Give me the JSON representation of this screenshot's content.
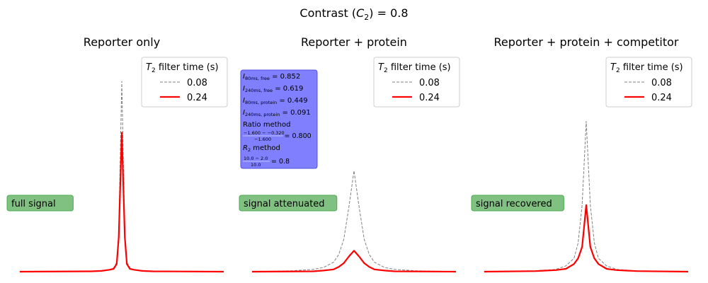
{
  "suptitle": {
    "prefix": "Contrast (",
    "symbol": "C",
    "sub": "2",
    "suffix": ") = 0.8"
  },
  "legend": {
    "title_symbol": "T",
    "title_sub": "2",
    "title_rest": " filter time (s)",
    "entries": [
      {
        "label": "0.08",
        "color": "#808080",
        "style": "dashed"
      },
      {
        "label": "0.24",
        "color": "#ff0000",
        "style": "solid"
      }
    ]
  },
  "colors": {
    "badge_fill": "#80c080",
    "badge_edge": "#4caf50",
    "info_fill": "#8080ff",
    "info_edge": "#4f4fe0"
  },
  "info_box": {
    "lines": [
      {
        "kind": "sym",
        "base": "I",
        "sub": "80ms, free",
        "value": " = 0.852"
      },
      {
        "kind": "sym",
        "base": "I",
        "sub": "240ms, free",
        "value": " = 0.619"
      },
      {
        "kind": "sym",
        "base": "I",
        "sub": "80ms, protein",
        "value": " = 0.449"
      },
      {
        "kind": "sym",
        "base": "I",
        "sub": "240ms, protein",
        "value": " = 0.091"
      },
      {
        "kind": "text",
        "text": "Ratio method"
      },
      {
        "kind": "frac",
        "num": "−1.600 − −0.320",
        "den": "−1.600",
        "value": " = 0.800"
      },
      {
        "kind": "sym",
        "base": "R",
        "sub": "2",
        "value": " method"
      },
      {
        "kind": "frac",
        "num": "10.0 − 2.0",
        "den": "10.0",
        "value": " = 0.8"
      }
    ]
  },
  "chart_data": [
    {
      "type": "line",
      "title": "Reporter only",
      "annotation": "full signal",
      "xlim": [
        -10,
        10
      ],
      "ylim": [
        0,
        1.0
      ],
      "series": [
        {
          "name": "0.08",
          "x": [
            -10,
            -3,
            -2,
            -1.2,
            -0.8,
            -0.5,
            -0.3,
            0,
            0.3,
            0.5,
            0.8,
            1.2,
            2,
            3,
            10
          ],
          "y": [
            0,
            0.002,
            0.004,
            0.01,
            0.02,
            0.05,
            0.2,
            1.0,
            0.2,
            0.05,
            0.02,
            0.01,
            0.004,
            0.002,
            0
          ]
        },
        {
          "name": "0.24",
          "x": [
            -10,
            -3,
            -2,
            -1.2,
            -0.8,
            -0.5,
            -0.3,
            0,
            0.3,
            0.5,
            0.8,
            1.2,
            2,
            3,
            10
          ],
          "y": [
            0,
            0.002,
            0.004,
            0.01,
            0.015,
            0.04,
            0.18,
            0.73,
            0.18,
            0.04,
            0.015,
            0.01,
            0.004,
            0.002,
            0
          ]
        }
      ]
    },
    {
      "type": "line",
      "title": "Reporter + protein",
      "annotation": "signal attenuated",
      "xlim": [
        -10,
        10
      ],
      "ylim": [
        0,
        1.0
      ],
      "series": [
        {
          "name": "0.08",
          "x": [
            -10,
            -6,
            -4,
            -3,
            -2,
            -1.5,
            -1,
            -0.5,
            0,
            0.5,
            1,
            1.5,
            2,
            3,
            4,
            6,
            10
          ],
          "y": [
            0,
            0.005,
            0.012,
            0.022,
            0.05,
            0.09,
            0.17,
            0.34,
            0.53,
            0.34,
            0.17,
            0.09,
            0.05,
            0.022,
            0.012,
            0.005,
            0
          ]
        },
        {
          "name": "0.24",
          "x": [
            -10,
            -4,
            -3,
            -2,
            -1.5,
            -1,
            -0.5,
            0,
            0.5,
            1,
            1.5,
            2,
            3,
            4,
            10
          ],
          "y": [
            0,
            0.002,
            0.006,
            0.012,
            0.025,
            0.045,
            0.08,
            0.11,
            0.08,
            0.045,
            0.025,
            0.012,
            0.006,
            0.002,
            0
          ]
        }
      ]
    },
    {
      "type": "line",
      "title": "Reporter + protein + competitor",
      "annotation": "signal recovered",
      "xlim": [
        -10,
        10
      ],
      "ylim": [
        0,
        1.0
      ],
      "series": [
        {
          "name": "0.08",
          "x": [
            -10,
            -5,
            -3,
            -2,
            -1.2,
            -0.8,
            -0.4,
            0,
            0.4,
            0.8,
            1.2,
            2,
            3,
            5,
            10
          ],
          "y": [
            0,
            0.005,
            0.012,
            0.03,
            0.07,
            0.15,
            0.35,
            0.79,
            0.35,
            0.15,
            0.07,
            0.03,
            0.012,
            0.005,
            0
          ]
        },
        {
          "name": "0.24",
          "x": [
            -10,
            -5,
            -3,
            -2,
            -1.2,
            -0.8,
            -0.4,
            0,
            0.4,
            0.8,
            1.2,
            2,
            3,
            5,
            10
          ],
          "y": [
            0,
            0.003,
            0.008,
            0.015,
            0.04,
            0.07,
            0.13,
            0.35,
            0.13,
            0.07,
            0.04,
            0.015,
            0.008,
            0.003,
            0
          ]
        }
      ]
    }
  ]
}
